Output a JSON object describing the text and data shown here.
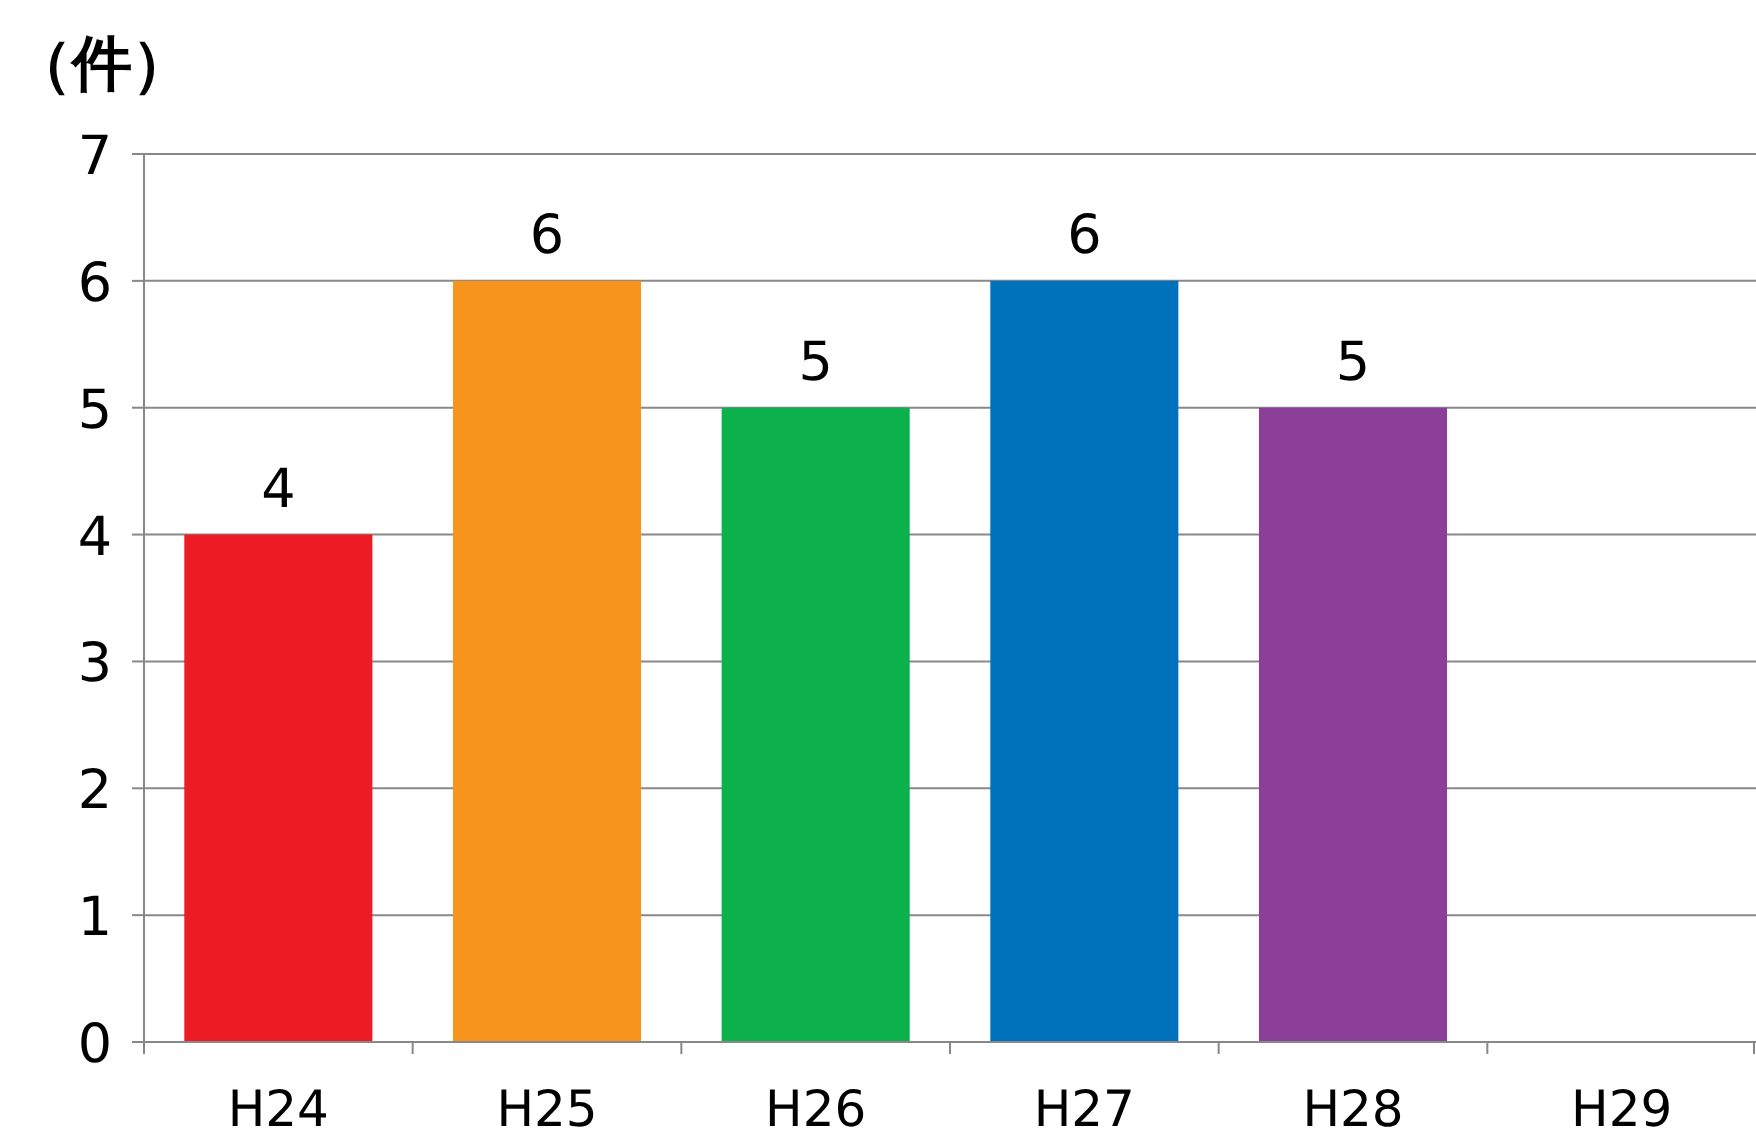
{
  "chart_data": {
    "type": "bar",
    "ylabel": "（件）",
    "categories": [
      "H24",
      "H25",
      "H26",
      "H27",
      "H28",
      "H29"
    ],
    "values": [
      4,
      6,
      5,
      6,
      5,
      null
    ],
    "colors": [
      "#ed1c24",
      "#f7941d",
      "#0db14b",
      "#0072bc",
      "#8b3f98",
      null
    ],
    "ylim": [
      0,
      7
    ],
    "yticks": [
      0,
      1,
      2,
      3,
      4,
      5,
      6,
      7
    ],
    "grid": "y",
    "data_labels": true
  }
}
